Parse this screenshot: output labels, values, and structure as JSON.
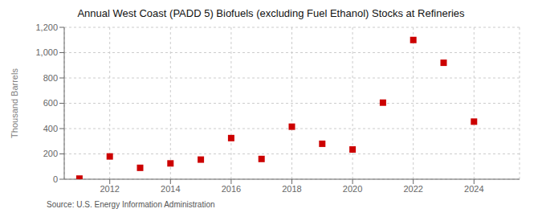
{
  "chart_data": {
    "type": "scatter",
    "title": "Annual West Coast (PADD 5) Biofuels (excluding Fuel Ethanol) Stocks at Refineries",
    "y_label": "Thousand Barrels",
    "source": "Source: U.S. Energy Information Administration",
    "x": [
      2011,
      2012,
      2013,
      2014,
      2015,
      2016,
      2017,
      2018,
      2019,
      2020,
      2021,
      2022,
      2023,
      2024
    ],
    "values": [
      5,
      180,
      90,
      125,
      155,
      325,
      160,
      415,
      280,
      235,
      605,
      1100,
      920,
      455
    ],
    "color": "#cc0000",
    "marker": "square",
    "xlim": [
      2010.5,
      2025.5
    ],
    "xticks": [
      2012,
      2014,
      2016,
      2018,
      2020,
      2022,
      2024
    ],
    "ylim": [
      0,
      1200
    ],
    "yticks": [
      0,
      200,
      400,
      600,
      {
        "value": 800,
        "label": "800"
      },
      {
        "value": 1000,
        "label": "1,000"
      },
      {
        "value": 1200,
        "label": "1,200"
      }
    ],
    "grid": true
  }
}
